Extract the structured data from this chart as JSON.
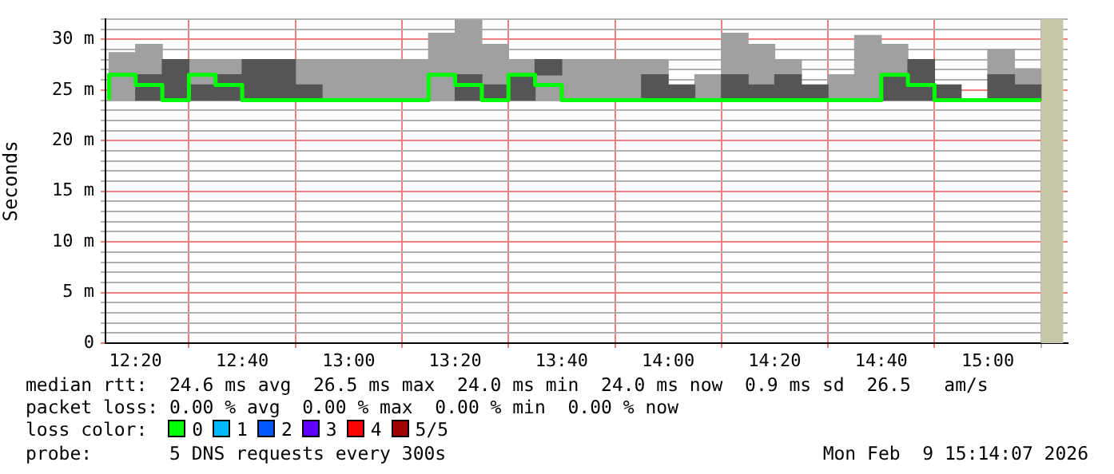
{
  "chart_data": {
    "type": "bar",
    "ylabel": "Seconds",
    "grid": true,
    "legend": false,
    "xlim": [
      12.2389,
      15.25
    ],
    "ylim": [
      0,
      32
    ],
    "xticks": [
      {
        "value": 12.3333,
        "label": "12:20"
      },
      {
        "value": 12.6667,
        "label": "12:40"
      },
      {
        "value": 13,
        "label": "13:00"
      },
      {
        "value": 13.3333,
        "label": "13:20"
      },
      {
        "value": 13.6667,
        "label": "13:40"
      },
      {
        "value": 14,
        "label": "14:00"
      },
      {
        "value": 14.3333,
        "label": "14:20"
      },
      {
        "value": 14.6667,
        "label": "14:40"
      },
      {
        "value": 15,
        "label": "15:00"
      }
    ],
    "yticks": [
      {
        "value": 0,
        "label": "0"
      },
      {
        "value": 1,
        "label": null
      },
      {
        "value": 2,
        "label": null
      },
      {
        "value": 3,
        "label": null
      },
      {
        "value": 4,
        "label": null
      },
      {
        "value": 5,
        "label": "5 m"
      },
      {
        "value": 6,
        "label": null
      },
      {
        "value": 7,
        "label": null
      },
      {
        "value": 8,
        "label": null
      },
      {
        "value": 9,
        "label": null
      },
      {
        "value": 10,
        "label": "10 m"
      },
      {
        "value": 11,
        "label": null
      },
      {
        "value": 12,
        "label": null
      },
      {
        "value": 13,
        "label": null
      },
      {
        "value": 14,
        "label": null
      },
      {
        "value": 15,
        "label": "15 m"
      },
      {
        "value": 16,
        "label": null
      },
      {
        "value": 17,
        "label": null
      },
      {
        "value": 18,
        "label": null
      },
      {
        "value": 19,
        "label": null
      },
      {
        "value": 20,
        "label": "20 m"
      },
      {
        "value": 21,
        "label": null
      },
      {
        "value": 22,
        "label": null
      },
      {
        "value": 23,
        "label": null
      },
      {
        "value": 24,
        "label": null
      },
      {
        "value": 25,
        "label": "25 m"
      },
      {
        "value": 26,
        "label": null
      },
      {
        "value": 27,
        "label": null
      },
      {
        "value": 28,
        "label": null
      },
      {
        "value": 29,
        "label": null
      },
      {
        "value": 30,
        "label": "30 m"
      },
      {
        "value": 31,
        "label": null
      },
      {
        "value": 32,
        "label": null
      }
    ],
    "x": [
      12.2917,
      12.375,
      12.4583,
      12.5417,
      12.625,
      12.7083,
      12.7917,
      12.875,
      12.9583,
      13.0417,
      13.125,
      13.2083,
      13.2917,
      13.375,
      13.4583,
      13.5417,
      13.625,
      13.7083,
      13.7917,
      13.875,
      13.9583,
      14.0417,
      14.125,
      14.2083,
      14.2917,
      14.375,
      14.4583,
      14.5417,
      14.625,
      14.7083,
      14.7917,
      14.875,
      14.9583,
      15.0417,
      15.125
    ],
    "series": [
      {
        "color": "#a0a0a0",
        "base": [
          24,
          26.5,
          null,
          25.5,
          26.5,
          null,
          null,
          25.5,
          24,
          24,
          24,
          24,
          24,
          26.5,
          25.5,
          26.5,
          24,
          24,
          24,
          24,
          26.5,
          null,
          24,
          26.5,
          25.5,
          26.5,
          null,
          24,
          24,
          26.5,
          null,
          null,
          null,
          26.5,
          25.5
        ],
        "values": [
          4.7,
          3,
          null,
          2.5,
          1.5,
          null,
          null,
          2.5,
          4,
          4,
          4,
          4,
          6.6,
          5.4,
          4,
          1.5,
          2.5,
          4,
          4,
          4,
          1.5,
          null,
          2.5,
          4.1,
          4,
          1.5,
          null,
          2.5,
          6.4,
          3,
          null,
          null,
          null,
          2.5,
          1.6
        ]
      },
      {
        "color": "#555555",
        "base": [
          null,
          24,
          24,
          24,
          24,
          24,
          24,
          24,
          null,
          null,
          null,
          null,
          null,
          24,
          24,
          24,
          26.5,
          null,
          null,
          null,
          24,
          24,
          null,
          24,
          24,
          24,
          24,
          null,
          null,
          24,
          24,
          24,
          null,
          24,
          24
        ],
        "values": [
          null,
          2.5,
          4,
          1.5,
          2.5,
          4,
          4,
          1.5,
          null,
          null,
          null,
          null,
          null,
          2.5,
          1.5,
          2.5,
          1.5,
          null,
          null,
          null,
          2.5,
          1.5,
          null,
          2.5,
          1.5,
          2.5,
          1.5,
          null,
          null,
          2.5,
          4,
          1.5,
          null,
          2.5,
          1.5
        ]
      },
      {
        "type": "step",
        "color": "#00ff00",
        "x": [
          12.25,
          12.3333,
          12.4167,
          12.5,
          12.5833,
          12.6667,
          12.75,
          12.8333,
          12.9167,
          13,
          13.0833,
          13.1667,
          13.25,
          13.3333,
          13.4167,
          13.5,
          13.5833,
          13.6667,
          13.75,
          13.8333,
          13.9167,
          14,
          14.0833,
          14.1667,
          14.25,
          14.3333,
          14.4167,
          14.5,
          14.5833,
          14.6667,
          14.75,
          14.8333,
          14.9167,
          15,
          15.0833,
          15.1667
        ],
        "values": [
          24,
          26.5,
          25.5,
          24,
          26.5,
          25.5,
          24,
          24,
          24,
          24,
          24,
          24,
          24,
          26.5,
          25.5,
          24,
          26.5,
          25.5,
          24,
          24,
          24,
          24,
          24,
          24,
          24,
          24,
          24,
          24,
          24,
          24,
          26.5,
          25.5,
          24,
          24,
          24,
          24
        ]
      }
    ],
    "bands": [
      {
        "axis": "x",
        "from": 15.1667,
        "to": 15.2361,
        "color": "#c8c8a8"
      }
    ],
    "annotations": [
      "median rtt:  24.6 ms avg  26.5 ms max  24.0 ms min  24.0 ms now  0.9 ms sd  26.5   am/s",
      "packet loss: 0.00 % avg  0.00 % max  0.00 % min  0.00 % now",
      "loss color:",
      "0",
      "1",
      "2",
      "3",
      "4",
      "5/5",
      "probe:       5 DNS requests every 300s",
      "Mon Feb  9 15:14:07 2026"
    ]
  }
}
